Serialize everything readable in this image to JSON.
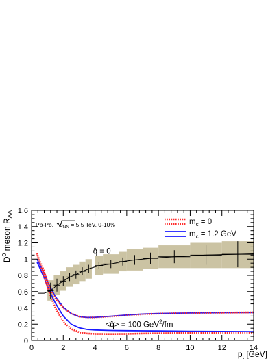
{
  "chart_data": {
    "type": "line",
    "xlabel_main": "p",
    "xlabel_sub": "t",
    "xlabel_unit": " [GeV]",
    "ylabel_main": "D",
    "ylabel_sup": "0",
    "ylabel_mid": " meson R",
    "ylabel_sub": "AA",
    "xlim": [
      0,
      14
    ],
    "ylim": [
      0,
      1.6
    ],
    "x_major_ticks": [
      0,
      2,
      4,
      6,
      8,
      10,
      12,
      14
    ],
    "x_tick_labels": [
      "0",
      "2",
      "4",
      "6",
      "8",
      "10",
      "12",
      "14"
    ],
    "y_major_ticks": [
      0,
      0.2,
      0.4,
      0.6,
      0.8,
      1.0,
      1.2,
      1.4,
      1.6
    ],
    "y_tick_labels": [
      "0",
      "0.2",
      "0.4",
      "0.6",
      "0.8",
      "1",
      "1.2",
      "1.4",
      "1.6"
    ],
    "system_label": {
      "pre": "Pb-Pb, ",
      "sqrt": "s",
      "sqrt_sub": "NN",
      "post": " = 5.5 TeV, 0-10%"
    },
    "legend": {
      "position": "top-right",
      "entries": [
        {
          "main": "m",
          "sub": "c",
          "post": " = 0",
          "color": "#ff2a2a",
          "style": "dotted-pair"
        },
        {
          "main": "m",
          "sub": "c",
          "post": " = 1.2 GeV",
          "color": "#1a1aff",
          "style": "solid-pair"
        }
      ]
    },
    "annotations": {
      "qhat_zero": {
        "text": "q̂ = 0",
        "x": 5.0,
        "y": 1.1
      },
      "qhat_100": {
        "pre": "<q̂> = 100 GeV",
        "sup": "2",
        "post": "/fm",
        "x": 6.9,
        "y": 0.2
      }
    },
    "colors": {
      "band": "#cbc3a3",
      "points": "#000000",
      "massless": "#ff2a2a",
      "massive": "#1a1aff"
    },
    "series": [
      {
        "name": "q̂ = 0",
        "kind": "points_with_band",
        "points": [
          {
            "x": 1.2,
            "y": 0.61,
            "xerr": 0.2,
            "yerr": 0.1,
            "band": [
              0.49,
              0.74
            ]
          },
          {
            "x": 1.6,
            "y": 0.68,
            "xerr": 0.2,
            "yerr": 0.08,
            "band": [
              0.56,
              0.8
            ]
          },
          {
            "x": 2.0,
            "y": 0.73,
            "xerr": 0.2,
            "yerr": 0.06,
            "band": [
              0.61,
              0.85
            ]
          },
          {
            "x": 2.4,
            "y": 0.78,
            "xerr": 0.2,
            "yerr": 0.05,
            "band": [
              0.66,
              0.9
            ]
          },
          {
            "x": 2.8,
            "y": 0.81,
            "xerr": 0.2,
            "yerr": 0.05,
            "band": [
              0.69,
              0.93
            ]
          },
          {
            "x": 3.2,
            "y": 0.85,
            "xerr": 0.2,
            "yerr": 0.05,
            "band": [
              0.73,
              0.97
            ]
          },
          {
            "x": 3.6,
            "y": 0.88,
            "xerr": 0.2,
            "yerr": 0.05,
            "band": [
              0.76,
              1.0
            ]
          },
          {
            "x": 4.25,
            "y": 0.92,
            "xerr": 0.25,
            "yerr": 0.04,
            "band": [
              0.8,
              1.04
            ]
          },
          {
            "x": 5.0,
            "y": 0.94,
            "xerr": 0.5,
            "yerr": 0.05,
            "band": [
              0.82,
              1.06
            ]
          },
          {
            "x": 5.75,
            "y": 0.97,
            "xerr": 0.25,
            "yerr": 0.05,
            "band": [
              0.85,
              1.09
            ]
          },
          {
            "x": 6.5,
            "y": 0.99,
            "xerr": 0.5,
            "yerr": 0.06,
            "band": [
              0.86,
              1.12
            ]
          },
          {
            "x": 7.5,
            "y": 1.01,
            "xerr": 0.5,
            "yerr": 0.07,
            "band": [
              0.88,
              1.14
            ]
          },
          {
            "x": 9.0,
            "y": 1.03,
            "xerr": 1.0,
            "yerr": 0.08,
            "band": [
              0.89,
              1.17
            ]
          },
          {
            "x": 11.0,
            "y": 1.05,
            "xerr": 1.0,
            "yerr": 0.12,
            "band": [
              0.89,
              1.2
            ]
          },
          {
            "x": 13.0,
            "y": 1.06,
            "xerr": 1.0,
            "yerr": 0.16,
            "band": [
              0.89,
              1.22
            ]
          }
        ],
        "line": [
          [
            0.4,
            0.58
          ],
          [
            0.8,
            0.58
          ],
          [
            1.2,
            0.61
          ],
          [
            1.6,
            0.68
          ],
          [
            2.0,
            0.73
          ],
          [
            2.4,
            0.78
          ],
          [
            2.8,
            0.81
          ],
          [
            3.2,
            0.85
          ],
          [
            3.6,
            0.88
          ],
          [
            4.25,
            0.92
          ],
          [
            5.0,
            0.94
          ],
          [
            5.75,
            0.97
          ],
          [
            6.5,
            0.99
          ],
          [
            7.5,
            1.01
          ],
          [
            9.0,
            1.03
          ],
          [
            11.0,
            1.05
          ],
          [
            13.0,
            1.06
          ],
          [
            14.0,
            1.065
          ]
        ]
      },
      {
        "name": "m_c = 0 (upper)",
        "kind": "dotted",
        "color": "#ff2a2a",
        "x": [
          0.35,
          0.5,
          0.75,
          1.0,
          1.25,
          1.5,
          2.0,
          2.5,
          3.0,
          3.5,
          4.0,
          5.0,
          6.0,
          7.0,
          8.0,
          10.0,
          12.0,
          14.0
        ],
        "y": [
          1.07,
          0.99,
          0.87,
          0.73,
          0.61,
          0.52,
          0.4,
          0.33,
          0.295,
          0.283,
          0.283,
          0.295,
          0.31,
          0.322,
          0.33,
          0.338,
          0.342,
          0.345
        ]
      },
      {
        "name": "m_c = 0 (lower)",
        "kind": "dotted",
        "color": "#ff2a2a",
        "x": [
          0.35,
          0.5,
          0.75,
          1.0,
          1.25,
          1.5,
          2.0,
          2.5,
          3.0,
          3.5,
          4.0,
          5.0,
          6.0,
          7.0,
          8.0,
          10.0,
          12.0,
          14.0
        ],
        "y": [
          1.05,
          0.96,
          0.82,
          0.66,
          0.52,
          0.4,
          0.23,
          0.14,
          0.1,
          0.085,
          0.08,
          0.078,
          0.08,
          0.085,
          0.088,
          0.092,
          0.095,
          0.097
        ]
      },
      {
        "name": "m_c = 1.2 GeV (upper)",
        "kind": "solid",
        "color": "#1a1aff",
        "x": [
          0.35,
          0.5,
          0.75,
          1.0,
          1.25,
          1.5,
          2.0,
          2.5,
          3.0,
          3.5,
          4.0,
          5.0,
          6.0,
          7.0,
          8.0,
          10.0,
          12.0,
          14.0
        ],
        "y": [
          1.0,
          0.94,
          0.84,
          0.73,
          0.63,
          0.54,
          0.41,
          0.33,
          0.293,
          0.283,
          0.285,
          0.298,
          0.313,
          0.325,
          0.332,
          0.338,
          0.341,
          0.343
        ]
      },
      {
        "name": "m_c = 1.2 GeV (lower)",
        "kind": "solid",
        "color": "#1a1aff",
        "x": [
          0.35,
          0.5,
          0.75,
          1.0,
          1.25,
          1.5,
          2.0,
          2.5,
          3.0,
          3.5,
          4.0,
          5.0,
          6.0,
          7.0,
          8.0,
          10.0,
          12.0,
          14.0
        ],
        "y": [
          0.96,
          0.9,
          0.79,
          0.67,
          0.56,
          0.46,
          0.3,
          0.2,
          0.155,
          0.135,
          0.128,
          0.122,
          0.12,
          0.118,
          0.116,
          0.113,
          0.11,
          0.108
        ]
      }
    ]
  }
}
